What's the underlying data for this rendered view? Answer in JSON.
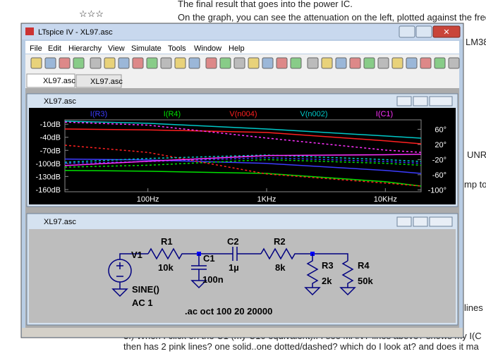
{
  "background": {
    "stars": "☆☆☆",
    "line1": "The final result that goes into the power IC.",
    "line2": "On the graph, you can see the attenuation on the left, plotted against the frequen",
    "side1": "LM38",
    "side2": "UNREA",
    "side3": "mp to",
    "side4": "lines",
    "bottom1": "3.) When I click on the C1 (my C10 equivalent)..  I see MANY lines above?  shows my I(C",
    "bottom2": "then has 2 pink lines?  one solid..one dotted/dashed?  which do I look at?  and does it ma"
  },
  "window": {
    "title": "LTspice IV - XL97.asc",
    "menu": [
      "File",
      "Edit",
      "Hierarchy",
      "View",
      "Simulate",
      "Tools",
      "Window",
      "Help"
    ],
    "tabs": [
      "XL97.asc",
      "XL97.asc"
    ]
  },
  "plot_window": {
    "title": "XL97.asc"
  },
  "chart_data": {
    "type": "line",
    "xlog": true,
    "grid": false,
    "x": [
      20,
      100,
      1000,
      10000,
      20000
    ],
    "xlim": [
      20,
      20000
    ],
    "xticks": [
      {
        "value": 100,
        "label": "100Hz"
      },
      {
        "value": 1000,
        "label": "1KHz"
      },
      {
        "value": 10000,
        "label": "10KHz"
      }
    ],
    "ylim": [
      -165,
      0
    ],
    "yticks": [
      {
        "value": -10,
        "label": "-10dB"
      },
      {
        "value": -40,
        "label": "-40dB"
      },
      {
        "value": -70,
        "label": "-70dB"
      },
      {
        "value": -100,
        "label": "-100dB"
      },
      {
        "value": -130,
        "label": "-130dB"
      },
      {
        "value": -160,
        "label": "-160dB"
      }
    ],
    "y2lim": [
      -105,
      85
    ],
    "y2ticks": [
      {
        "value": 60,
        "label": "60°"
      },
      {
        "value": 20,
        "label": "20°"
      },
      {
        "value": -20,
        "label": "-20°"
      },
      {
        "value": -60,
        "label": "-60°"
      },
      {
        "value": -100,
        "label": "-100°"
      }
    ],
    "series": [
      {
        "name": "I(R3)",
        "color": "#3c3cff",
        "values": [
          -90,
          -92,
          -100,
          -116,
          -123
        ],
        "phase": [
          -30,
          -25,
          -15,
          -25,
          -30
        ]
      },
      {
        "name": "I(R4)",
        "color": "#00e000",
        "values": [
          -116,
          -118,
          -123,
          -142,
          -152
        ],
        "phase": [
          -40,
          -35,
          -20,
          -30,
          -35
        ]
      },
      {
        "name": "V(n004)",
        "color": "#ff2020",
        "values": [
          -21,
          -23,
          -29,
          -48,
          -55
        ],
        "phase": [
          18,
          -1,
          -58,
          -82,
          -90
        ]
      },
      {
        "name": "V(n002)",
        "color": "#00c8c8",
        "values": [
          -3,
          -8,
          -21,
          -37,
          -42
        ],
        "phase": [
          -27,
          -17,
          -8,
          -20,
          -25
        ]
      },
      {
        "name": "I(C1)",
        "color": "#ff30ff",
        "values": [
          -105,
          -95,
          -82,
          -80,
          -79
        ],
        "phase": [
          79,
          71,
          37,
          5,
          -1
        ]
      }
    ]
  },
  "schematic": {
    "title": "XL97.asc",
    "v1": "V1",
    "r1": "R1",
    "r1_value": "10k",
    "c1": "C1",
    "c1_value": "100n",
    "c2": "C2",
    "c2_value": "1µ",
    "r2": "R2",
    "r2_value": "8k",
    "r3": "R3",
    "r3_value": "2k",
    "r4": "R4",
    "r4_value": "50k",
    "source": "SINE()",
    "ac": "AC 1",
    "directive": ".ac oct 100 20 20000"
  }
}
